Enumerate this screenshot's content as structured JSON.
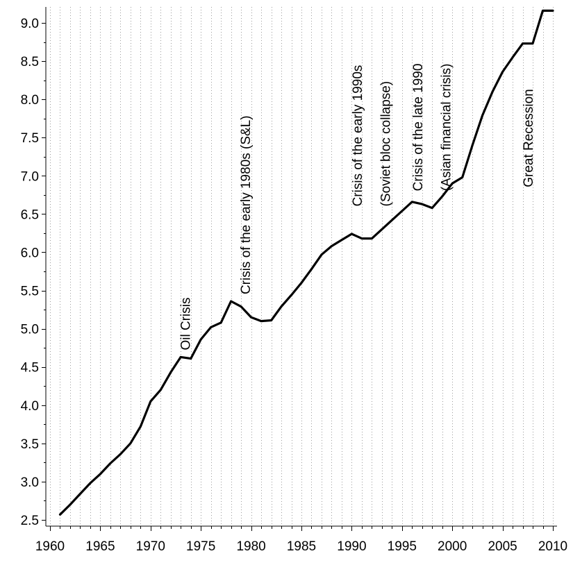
{
  "chart_data": {
    "type": "line",
    "title": "",
    "xlabel": "",
    "ylabel": "",
    "xlim": [
      1959.5,
      2010
    ],
    "ylim": [
      2.4,
      9.2
    ],
    "grid": "vertical-dotted",
    "x_ticks_major": [
      "1960",
      "1965",
      "1970",
      "1975",
      "1980",
      "1985",
      "1990",
      "1995",
      "2000",
      "2005",
      "2010"
    ],
    "y_ticks": [
      "2.5",
      "3.0",
      "3.5",
      "4.0",
      "4.5",
      "5.0",
      "5.5",
      "6.0",
      "6.5",
      "7.0",
      "7.5",
      "8.0",
      "8.5",
      "9.0"
    ],
    "series": [
      {
        "color": "#000000",
        "x": [
          1961,
          1962,
          1963,
          1964,
          1965,
          1966,
          1967,
          1968,
          1969,
          1970,
          1971,
          1972,
          1973,
          1974,
          1975,
          1976,
          1977,
          1978,
          1979,
          1980,
          1981,
          1982,
          1983,
          1984,
          1985,
          1986,
          1987,
          1988,
          1989,
          1990,
          1991,
          1992,
          1993,
          1994,
          1995,
          1996,
          1997,
          1998,
          1999,
          2000,
          2001,
          2002,
          2003,
          2004,
          2005,
          2006,
          2007,
          2008,
          2009,
          2010
        ],
        "y": [
          2.57,
          2.7,
          2.84,
          2.98,
          3.1,
          3.24,
          3.36,
          3.5,
          3.72,
          4.05,
          4.2,
          4.43,
          4.63,
          4.61,
          4.86,
          5.02,
          5.08,
          5.36,
          5.29,
          5.15,
          5.1,
          5.11,
          5.29,
          5.44,
          5.6,
          5.78,
          5.97,
          6.08,
          6.16,
          6.24,
          6.18,
          6.18,
          6.3,
          6.42,
          6.54,
          6.66,
          6.63,
          6.58,
          6.73,
          6.9,
          6.98,
          7.4,
          7.79,
          8.1,
          8.36,
          8.55,
          8.73,
          8.73,
          9.16,
          9.16
        ]
      }
    ],
    "annotations": [
      {
        "text": "Oil Crisis",
        "x": 1973.9,
        "y": 4.72
      },
      {
        "text": "Crisis of the early 1980s (S&L)",
        "x": 1979.9,
        "y": 5.45
      },
      {
        "text": "Crisis of the early 1990s",
        "x": 1991.0,
        "y": 6.6
      },
      {
        "text": "(Soviet bloc collapse)",
        "x": 1993.8,
        "y": 6.6
      },
      {
        "text": "Crisis of the late 1990",
        "x": 1997.0,
        "y": 6.8
      },
      {
        "text": "(Asian financial crisis)",
        "x": 1999.8,
        "y": 6.8
      },
      {
        "text": "Great Recession",
        "x": 2008.0,
        "y": 6.85
      }
    ]
  }
}
